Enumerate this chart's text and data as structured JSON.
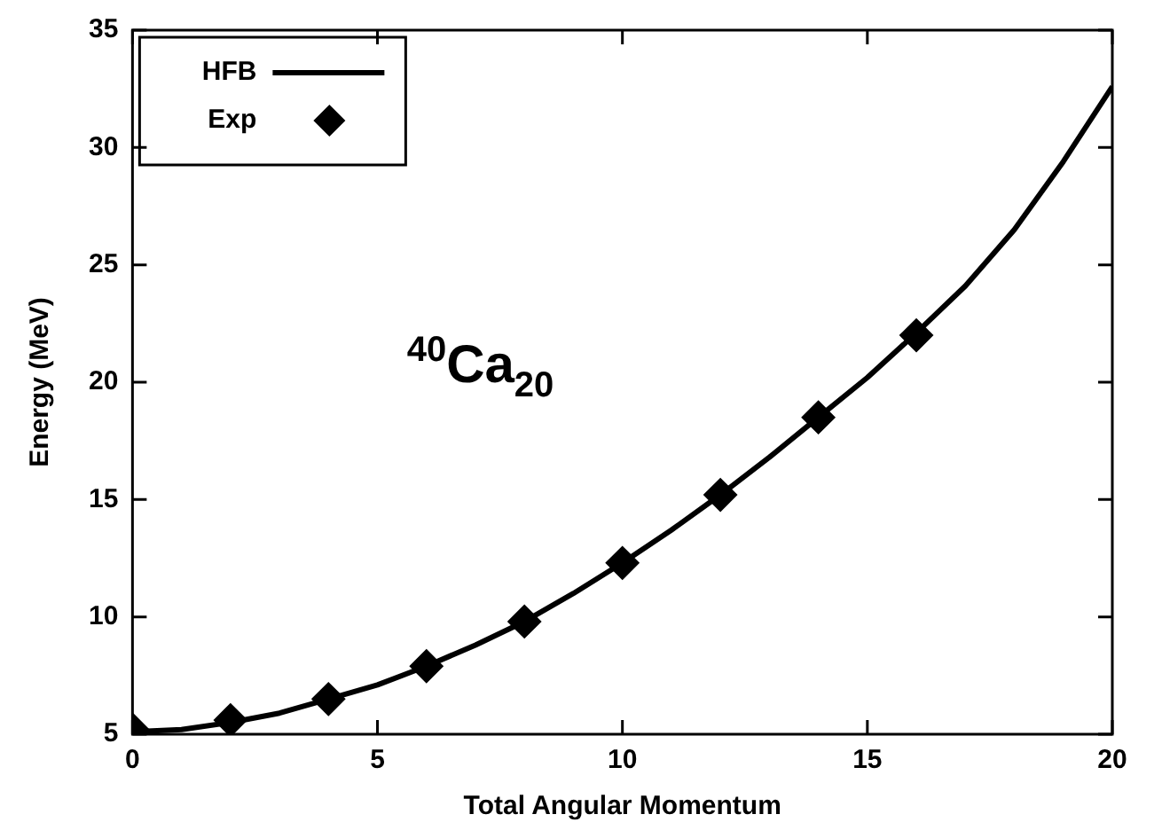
{
  "chart_data": {
    "type": "line",
    "xlabel": "Total Angular Momentum",
    "ylabel": "Energy (MeV)",
    "annotations": [
      "$^{40}$Ca$_{20}$"
    ],
    "series": [
      {
        "name": "HFB",
        "color": "#000000",
        "marker": "none",
        "line_style": "solid",
        "x": [
          0,
          1,
          2,
          3,
          4,
          5,
          6,
          7,
          8,
          9,
          10,
          11,
          12,
          13,
          14,
          15,
          16,
          17,
          18,
          19,
          20
        ],
        "values": [
          5.1,
          5.2,
          5.5,
          5.9,
          6.5,
          7.1,
          7.9,
          8.8,
          9.8,
          11.0,
          12.3,
          13.7,
          15.2,
          16.8,
          18.5,
          20.2,
          22.1,
          24.1,
          26.5,
          29.4,
          32.6
        ]
      },
      {
        "name": "Exp",
        "type": "scatter",
        "color": "#000000",
        "marker": "diamond",
        "x": [
          0,
          2,
          4,
          6,
          8,
          10,
          12,
          14,
          16
        ],
        "values": [
          5.2,
          5.6,
          6.5,
          7.9,
          9.8,
          12.3,
          15.2,
          18.5,
          22.0
        ]
      }
    ],
    "xlim": [
      0,
      20
    ],
    "xticks": [
      0,
      5,
      10,
      15,
      20
    ],
    "ylim": [
      5,
      35
    ],
    "yticks": [
      5,
      10,
      15,
      20,
      25,
      30,
      35
    ],
    "grid": false,
    "legend": "top left"
  }
}
